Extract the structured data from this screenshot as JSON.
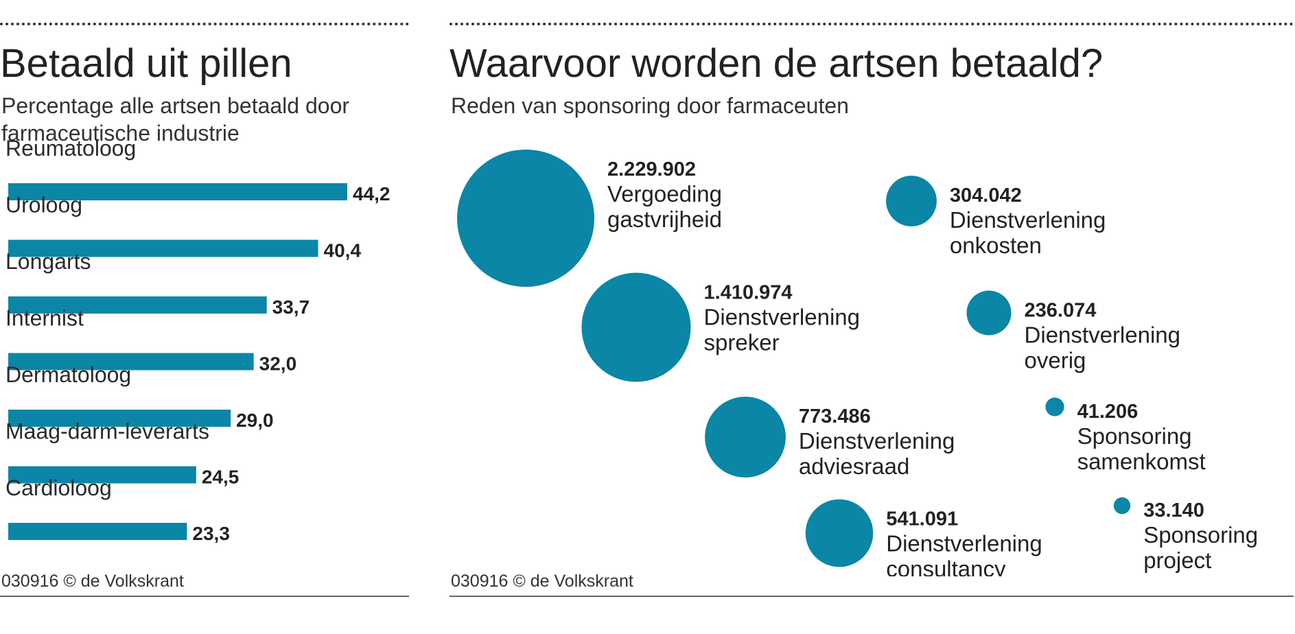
{
  "left": {
    "title": "Betaald uit pillen",
    "subtitle_line1": "Percentage alle artsen betaald door",
    "subtitle_line2": "farmaceutische industrie",
    "footer": "030916 © de Volkskrant"
  },
  "right": {
    "title": "Waarvoor worden de artsen betaald?",
    "subtitle": "Reden van sponsoring door farmaceuten",
    "footer": "030916 © de Volkskrant"
  },
  "colors": {
    "bar": "#0b86a6",
    "text": "#222222"
  },
  "chart_data": [
    {
      "type": "bar",
      "orientation": "horizontal",
      "title": "Betaald uit pillen",
      "subtitle": "Percentage alle artsen betaald door farmaceutische industrie",
      "categories": [
        "Reumatoloog",
        "Uroloog",
        "Longarts",
        "Internist",
        "Dermatoloog",
        "Maag-darm-leverarts",
        "Cardioloog"
      ],
      "values": [
        44.2,
        40.4,
        33.7,
        32.0,
        29.0,
        24.5,
        23.3
      ],
      "value_labels": [
        "44,2",
        "40,4",
        "33,7",
        "32,0",
        "29,0",
        "24,5",
        "23,3"
      ],
      "xlim": [
        0,
        44.2
      ]
    },
    {
      "type": "bubble",
      "title": "Waarvoor worden de artsen betaald?",
      "subtitle": "Reden van sponsoring door farmaceuten",
      "items": [
        {
          "value": 2229902,
          "value_label": "2.229.902",
          "label_line1": "Vergoeding",
          "label_line2": "gastvrijheid"
        },
        {
          "value": 1410974,
          "value_label": "1.410.974",
          "label_line1": "Dienstverlening",
          "label_line2": "spreker"
        },
        {
          "value": 773486,
          "value_label": "773.486",
          "label_line1": "Dienstverlening",
          "label_line2": "adviesraad"
        },
        {
          "value": 541091,
          "value_label": "541.091",
          "label_line1": "Dienstverlening",
          "label_line2": "consultancy"
        },
        {
          "value": 304042,
          "value_label": "304.042",
          "label_line1": "Dienstverlening",
          "label_line2": "onkosten"
        },
        {
          "value": 236074,
          "value_label": "236.074",
          "label_line1": "Dienstverlening",
          "label_line2": "overig"
        },
        {
          "value": 41206,
          "value_label": "41.206",
          "label_line1": "Sponsoring",
          "label_line2": "samenkomst"
        },
        {
          "value": 33140,
          "value_label": "33.140",
          "label_line1": "Sponsoring",
          "label_line2": "project"
        }
      ]
    }
  ]
}
